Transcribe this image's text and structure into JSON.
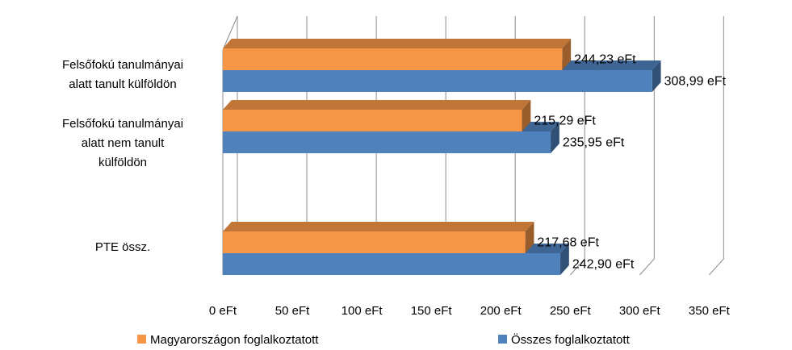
{
  "chart_data": {
    "type": "bar",
    "orientation": "horizontal",
    "three_d": true,
    "categories": [
      "Felsőfokú tanulmányai alatt tanult külföldön",
      "Felsőfokú tanulmányai alatt nem tanult külföldön",
      "PTE össz."
    ],
    "category_lines": [
      [
        "Felsőfokú tanulmányai",
        "alatt tanult külföldön"
      ],
      [
        "Felsőfokú tanulmányai",
        "alatt nem tanult",
        "külföldön"
      ],
      [
        "PTE össz."
      ]
    ],
    "series": [
      {
        "name": "Magyarországon foglalkoztatott",
        "values": [
          244.23,
          215.29,
          217.68
        ],
        "labels": [
          "244,23 eFt",
          "215,29 eFt",
          "217,68 eFt"
        ],
        "color": "#F79646"
      },
      {
        "name": "Összes foglalkoztatott",
        "values": [
          308.99,
          235.95,
          242.9
        ],
        "labels": [
          "308,99 eFt",
          "235,95 eFt",
          "242,90 eFt"
        ],
        "color": "#4F81BD"
      }
    ],
    "xlim": [
      0,
      350
    ],
    "xticks": [
      0,
      50,
      100,
      150,
      200,
      250,
      300,
      350
    ],
    "xtick_labels": [
      "0 eFt",
      "50 eFt",
      "100 eFt",
      "150 eFt",
      "200 eFt",
      "250 eFt",
      "300 eFt",
      "350 eFt"
    ],
    "grid": true,
    "legend_position": "bottom",
    "title": "",
    "xlabel": "",
    "ylabel": ""
  }
}
